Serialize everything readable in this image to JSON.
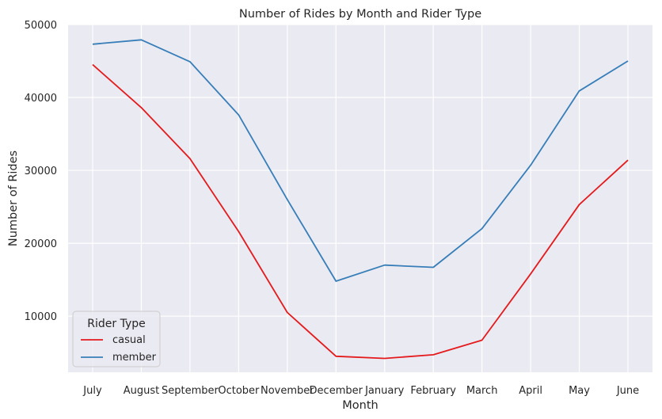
{
  "chart_data": {
    "type": "line",
    "title": "Number of Rides by Month and Rider Type",
    "xlabel": "Month",
    "ylabel": "Number of Rides",
    "categories": [
      "July",
      "August",
      "September",
      "October",
      "November",
      "December",
      "January",
      "February",
      "March",
      "April",
      "May",
      "June"
    ],
    "ylim": [
      2300,
      50000
    ],
    "yticks": [
      10000,
      20000,
      30000,
      40000,
      50000
    ],
    "grid": true,
    "legend_title": "Rider Type",
    "legend_position": "lower-left",
    "series": [
      {
        "name": "casual",
        "color": "#e41a1c",
        "values": [
          44500,
          38600,
          31600,
          21600,
          10500,
          4500,
          4200,
          4700,
          6700,
          15800,
          25300,
          31400
        ]
      },
      {
        "name": "member",
        "color": "#377eb8",
        "values": [
          47300,
          47900,
          44900,
          37600,
          26000,
          14800,
          17000,
          16700,
          22000,
          30700,
          40900,
          45000
        ]
      }
    ],
    "colors": {
      "plot_background": "#eaeaf2",
      "grid": "#ffffff"
    }
  }
}
